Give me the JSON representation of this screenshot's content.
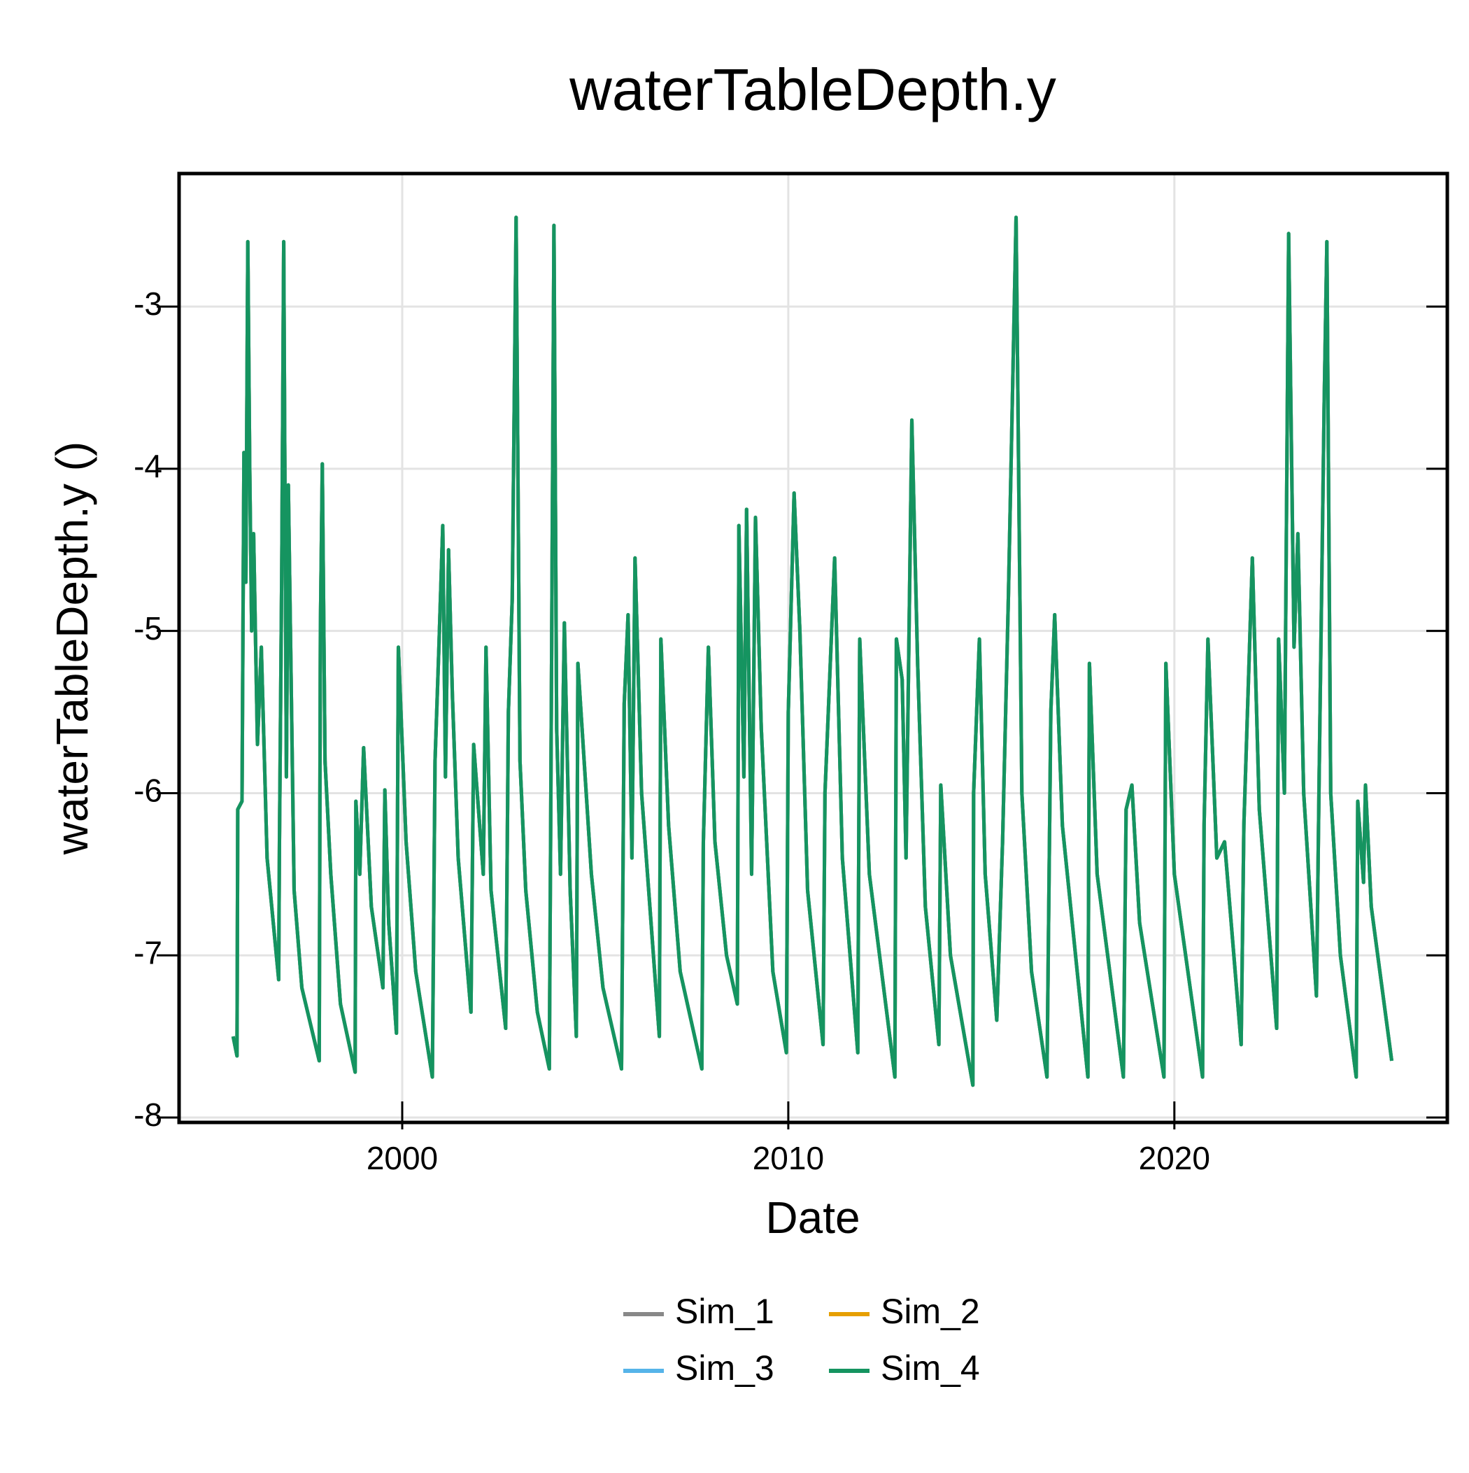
{
  "chart_data": {
    "type": "line",
    "title": "waterTableDepth.y",
    "x_label": "Date",
    "y_label": "waterTableDepth.y ()",
    "xlim": [
      1994.22,
      2027.07
    ],
    "ylim": [
      -8.03,
      -2.18
    ],
    "xticks": [
      2000,
      2010,
      2020
    ],
    "yticks": [
      -8,
      -7,
      -6,
      -5,
      -4,
      -3
    ],
    "grid": true,
    "x": [
      1995.62,
      1995.72,
      1995.74,
      1995.85,
      1995.9,
      1995.95,
      1996.0,
      1996.05,
      1996.1,
      1996.15,
      1996.25,
      1996.35,
      1996.5,
      1996.8,
      1996.82,
      1996.88,
      1996.93,
      1997.0,
      1997.05,
      1997.2,
      1997.4,
      1997.85,
      1997.88,
      1997.93,
      1998.0,
      1998.15,
      1998.4,
      1998.78,
      1998.8,
      1998.9,
      1999.0,
      1999.2,
      1999.5,
      1999.55,
      1999.65,
      1999.85,
      1999.9,
      2000.1,
      2000.35,
      2000.78,
      2000.85,
      2000.95,
      2001.05,
      2001.12,
      2001.2,
      2001.3,
      2001.45,
      2001.78,
      2001.85,
      2002.1,
      2002.17,
      2002.3,
      2002.68,
      2002.75,
      2002.85,
      2002.95,
      2003.05,
      2003.2,
      2003.5,
      2003.81,
      2003.85,
      2003.93,
      2004.0,
      2004.1,
      2004.2,
      2004.35,
      2004.51,
      2004.55,
      2004.9,
      2005.2,
      2005.68,
      2005.75,
      2005.85,
      2005.95,
      2006.03,
      2006.2,
      2006.66,
      2006.7,
      2006.9,
      2007.2,
      2007.76,
      2007.8,
      2007.93,
      2008.1,
      2008.4,
      2008.68,
      2008.72,
      2008.85,
      2008.92,
      2009.05,
      2009.15,
      2009.3,
      2009.6,
      2009.95,
      2010.0,
      2010.15,
      2010.3,
      2010.5,
      2010.9,
      2010.95,
      2011.2,
      2011.4,
      2011.8,
      2011.85,
      2012.1,
      2012.76,
      2012.8,
      2012.95,
      2013.05,
      2013.2,
      2013.35,
      2013.55,
      2013.9,
      2013.95,
      2014.2,
      2014.78,
      2014.8,
      2014.95,
      2015.1,
      2015.4,
      2015.55,
      2015.7,
      2015.9,
      2016.05,
      2016.3,
      2016.7,
      2016.8,
      2016.9,
      2017.1,
      2017.76,
      2017.8,
      2018.0,
      2018.68,
      2018.75,
      2018.9,
      2019.1,
      2019.73,
      2019.78,
      2020.0,
      2020.73,
      2020.77,
      2020.87,
      2021.1,
      2021.3,
      2021.73,
      2021.8,
      2022.02,
      2022.2,
      2022.65,
      2022.7,
      2022.85,
      2022.96,
      2023.1,
      2023.2,
      2023.35,
      2023.68,
      2023.75,
      2023.88,
      2023.95,
      2024.05,
      2024.3,
      2024.71,
      2024.75,
      2024.9,
      2024.95,
      2025.1,
      2025.63
    ],
    "series": [
      {
        "name": "Sim_1",
        "color": "#888888",
        "values": [
          -7.5,
          -7.62,
          -6.1,
          -6.05,
          -3.9,
          -4.7,
          -2.6,
          -4.0,
          -5.0,
          -4.4,
          -5.7,
          -5.1,
          -6.4,
          -7.15,
          -6.3,
          -4.6,
          -2.6,
          -5.9,
          -4.1,
          -6.6,
          -7.2,
          -7.65,
          -5.0,
          -3.97,
          -5.8,
          -6.5,
          -7.3,
          -7.72,
          -6.05,
          -6.5,
          -5.72,
          -6.7,
          -7.2,
          -5.98,
          -6.8,
          -7.48,
          -5.1,
          -6.3,
          -7.1,
          -7.75,
          -5.8,
          -5.1,
          -4.35,
          -5.9,
          -4.5,
          -5.4,
          -6.4,
          -7.35,
          -5.7,
          -6.5,
          -5.1,
          -6.6,
          -7.45,
          -5.5,
          -4.8,
          -2.45,
          -5.8,
          -6.6,
          -7.35,
          -7.7,
          -6.0,
          -2.5,
          -5.6,
          -6.5,
          -4.95,
          -6.6,
          -7.5,
          -5.2,
          -6.5,
          -7.2,
          -7.7,
          -5.45,
          -4.9,
          -6.4,
          -4.55,
          -6.0,
          -7.5,
          -5.05,
          -6.2,
          -7.1,
          -7.7,
          -6.3,
          -5.1,
          -6.3,
          -7.0,
          -7.3,
          -4.35,
          -5.9,
          -4.25,
          -6.5,
          -4.3,
          -5.6,
          -7.1,
          -7.6,
          -5.5,
          -4.15,
          -5.0,
          -6.6,
          -7.55,
          -6.0,
          -4.55,
          -6.4,
          -7.6,
          -5.05,
          -6.5,
          -7.75,
          -5.05,
          -5.3,
          -6.4,
          -3.7,
          -5.2,
          -6.7,
          -7.55,
          -5.95,
          -7.0,
          -7.8,
          -6.0,
          -5.05,
          -6.5,
          -7.4,
          -6.3,
          -4.8,
          -2.45,
          -6.0,
          -7.1,
          -7.75,
          -5.5,
          -4.9,
          -6.2,
          -7.75,
          -5.2,
          -6.5,
          -7.75,
          -6.1,
          -5.95,
          -6.8,
          -7.75,
          -5.2,
          -6.5,
          -7.75,
          -6.2,
          -5.05,
          -6.4,
          -6.3,
          -7.55,
          -6.2,
          -4.55,
          -6.1,
          -7.45,
          -5.05,
          -6.0,
          -2.55,
          -5.1,
          -4.4,
          -6.0,
          -7.25,
          -5.9,
          -3.6,
          -2.6,
          -6.0,
          -7.0,
          -7.75,
          -6.05,
          -6.55,
          -5.95,
          -6.7,
          -7.65
        ]
      },
      {
        "name": "Sim_2",
        "color": "#e69f00",
        "values": [
          -7.5,
          -7.62,
          -6.1,
          -6.05,
          -3.9,
          -4.7,
          -2.6,
          -4.0,
          -5.0,
          -4.4,
          -5.7,
          -5.1,
          -6.4,
          -7.15,
          -6.3,
          -4.6,
          -2.6,
          -5.9,
          -4.1,
          -6.6,
          -7.2,
          -7.65,
          -5.0,
          -3.97,
          -5.8,
          -6.5,
          -7.3,
          -7.72,
          -6.05,
          -6.5,
          -5.72,
          -6.7,
          -7.2,
          -5.98,
          -6.8,
          -7.48,
          -5.1,
          -6.3,
          -7.1,
          -7.75,
          -5.8,
          -5.1,
          -4.35,
          -5.9,
          -4.5,
          -5.4,
          -6.4,
          -7.35,
          -5.7,
          -6.5,
          -5.1,
          -6.6,
          -7.45,
          -5.5,
          -4.8,
          -2.45,
          -5.8,
          -6.6,
          -7.35,
          -7.7,
          -6.0,
          -2.5,
          -5.6,
          -6.5,
          -4.95,
          -6.6,
          -7.5,
          -5.2,
          -6.5,
          -7.2,
          -7.7,
          -5.45,
          -4.9,
          -6.4,
          -4.55,
          -6.0,
          -7.5,
          -5.05,
          -6.2,
          -7.1,
          -7.7,
          -6.3,
          -5.1,
          -6.3,
          -7.0,
          -7.3,
          -4.35,
          -5.9,
          -4.25,
          -6.5,
          -4.3,
          -5.6,
          -7.1,
          -7.6,
          -5.5,
          -4.15,
          -5.0,
          -6.6,
          -7.55,
          -6.0,
          -4.55,
          -6.4,
          -7.6,
          -5.05,
          -6.5,
          -7.75,
          -5.05,
          -5.3,
          -6.4,
          -3.7,
          -5.2,
          -6.7,
          -7.55,
          -5.95,
          -7.0,
          -7.8,
          -6.0,
          -5.05,
          -6.5,
          -7.4,
          -6.3,
          -4.8,
          -2.45,
          -6.0,
          -7.1,
          -7.75,
          -5.5,
          -4.9,
          -6.2,
          -7.75,
          -5.2,
          -6.5,
          -7.75,
          -6.1,
          -5.95,
          -6.8,
          -7.75,
          -5.2,
          -6.5,
          -7.75,
          -6.2,
          -5.05,
          -6.4,
          -6.3,
          -7.55,
          -6.2,
          -4.55,
          -6.1,
          -7.45,
          -5.05,
          -6.0,
          -2.55,
          -5.1,
          -4.4,
          -6.0,
          -7.25,
          -5.9,
          -3.6,
          -2.6,
          -6.0,
          -7.0,
          -7.75,
          -6.05,
          -6.55,
          -5.95,
          -6.7,
          -7.65
        ]
      },
      {
        "name": "Sim_3",
        "color": "#56b4e9",
        "values": [
          -7.5,
          -7.62,
          -6.1,
          -6.05,
          -3.9,
          -4.7,
          -2.6,
          -4.0,
          -5.0,
          -4.4,
          -5.7,
          -5.1,
          -6.4,
          -7.15,
          -6.3,
          -4.6,
          -2.6,
          -5.9,
          -4.1,
          -6.6,
          -7.2,
          -7.65,
          -5.0,
          -3.97,
          -5.8,
          -6.5,
          -7.3,
          -7.72,
          -6.05,
          -6.5,
          -5.72,
          -6.7,
          -7.2,
          -5.98,
          -6.8,
          -7.48,
          -5.1,
          -6.3,
          -7.1,
          -7.75,
          -5.8,
          -5.1,
          -4.35,
          -5.9,
          -4.5,
          -5.4,
          -6.4,
          -7.35,
          -5.7,
          -6.5,
          -5.1,
          -6.6,
          -7.45,
          -5.5,
          -4.8,
          -2.45,
          -5.8,
          -6.6,
          -7.35,
          -7.7,
          -6.0,
          -2.5,
          -5.6,
          -6.5,
          -4.95,
          -6.6,
          -7.5,
          -5.2,
          -6.5,
          -7.2,
          -7.7,
          -5.45,
          -4.9,
          -6.4,
          -4.55,
          -6.0,
          -7.5,
          -5.05,
          -6.2,
          -7.1,
          -7.7,
          -6.3,
          -5.1,
          -6.3,
          -7.0,
          -7.3,
          -4.35,
          -5.9,
          -4.25,
          -6.5,
          -4.3,
          -5.6,
          -7.1,
          -7.6,
          -5.5,
          -4.15,
          -5.0,
          -6.6,
          -7.55,
          -6.0,
          -4.55,
          -6.4,
          -7.6,
          -5.05,
          -6.5,
          -7.75,
          -5.05,
          -5.3,
          -6.4,
          -3.7,
          -5.2,
          -6.7,
          -7.55,
          -5.95,
          -7.0,
          -7.8,
          -6.0,
          -5.05,
          -6.5,
          -7.4,
          -6.3,
          -4.8,
          -2.45,
          -6.0,
          -7.1,
          -7.75,
          -5.5,
          -4.9,
          -6.2,
          -7.75,
          -5.2,
          -6.5,
          -7.75,
          -6.1,
          -5.95,
          -6.8,
          -7.75,
          -5.2,
          -6.5,
          -7.75,
          -6.2,
          -5.05,
          -6.4,
          -6.3,
          -7.55,
          -6.2,
          -4.55,
          -6.1,
          -7.45,
          -5.05,
          -6.0,
          -2.55,
          -5.1,
          -4.4,
          -6.0,
          -7.25,
          -5.9,
          -3.6,
          -2.6,
          -6.0,
          -7.0,
          -7.75,
          -6.05,
          -6.55,
          -5.95,
          -6.7,
          -7.65
        ]
      },
      {
        "name": "Sim_4",
        "color": "#159460",
        "values": [
          -7.5,
          -7.62,
          -6.1,
          -6.05,
          -3.9,
          -4.7,
          -2.6,
          -4.0,
          -5.0,
          -4.4,
          -5.7,
          -5.1,
          -6.4,
          -7.15,
          -6.3,
          -4.6,
          -2.6,
          -5.9,
          -4.1,
          -6.6,
          -7.2,
          -7.65,
          -5.0,
          -3.97,
          -5.8,
          -6.5,
          -7.3,
          -7.72,
          -6.05,
          -6.5,
          -5.72,
          -6.7,
          -7.2,
          -5.98,
          -6.8,
          -7.48,
          -5.1,
          -6.3,
          -7.1,
          -7.75,
          -5.8,
          -5.1,
          -4.35,
          -5.9,
          -4.5,
          -5.4,
          -6.4,
          -7.35,
          -5.7,
          -6.5,
          -5.1,
          -6.6,
          -7.45,
          -5.5,
          -4.8,
          -2.45,
          -5.8,
          -6.6,
          -7.35,
          -7.7,
          -6.0,
          -2.5,
          -5.6,
          -6.5,
          -4.95,
          -6.6,
          -7.5,
          -5.2,
          -6.5,
          -7.2,
          -7.7,
          -5.45,
          -4.9,
          -6.4,
          -4.55,
          -6.0,
          -7.5,
          -5.05,
          -6.2,
          -7.1,
          -7.7,
          -6.3,
          -5.1,
          -6.3,
          -7.0,
          -7.3,
          -4.35,
          -5.9,
          -4.25,
          -6.5,
          -4.3,
          -5.6,
          -7.1,
          -7.6,
          -5.5,
          -4.15,
          -5.0,
          -6.6,
          -7.55,
          -6.0,
          -4.55,
          -6.4,
          -7.6,
          -5.05,
          -6.5,
          -7.75,
          -5.05,
          -5.3,
          -6.4,
          -3.7,
          -5.2,
          -6.7,
          -7.55,
          -5.95,
          -7.0,
          -7.8,
          -6.0,
          -5.05,
          -6.5,
          -7.4,
          -6.3,
          -4.8,
          -2.45,
          -6.0,
          -7.1,
          -7.75,
          -5.5,
          -4.9,
          -6.2,
          -7.75,
          -5.2,
          -6.5,
          -7.75,
          -6.1,
          -5.95,
          -6.8,
          -7.75,
          -5.2,
          -6.5,
          -7.75,
          -6.2,
          -5.05,
          -6.4,
          -6.3,
          -7.55,
          -6.2,
          -4.55,
          -6.1,
          -7.45,
          -5.05,
          -6.0,
          -2.55,
          -5.1,
          -4.4,
          -6.0,
          -7.25,
          -5.9,
          -3.6,
          -2.6,
          -6.0,
          -7.0,
          -7.75,
          -6.05,
          -6.55,
          -5.95,
          -6.7,
          -7.65
        ]
      }
    ]
  }
}
